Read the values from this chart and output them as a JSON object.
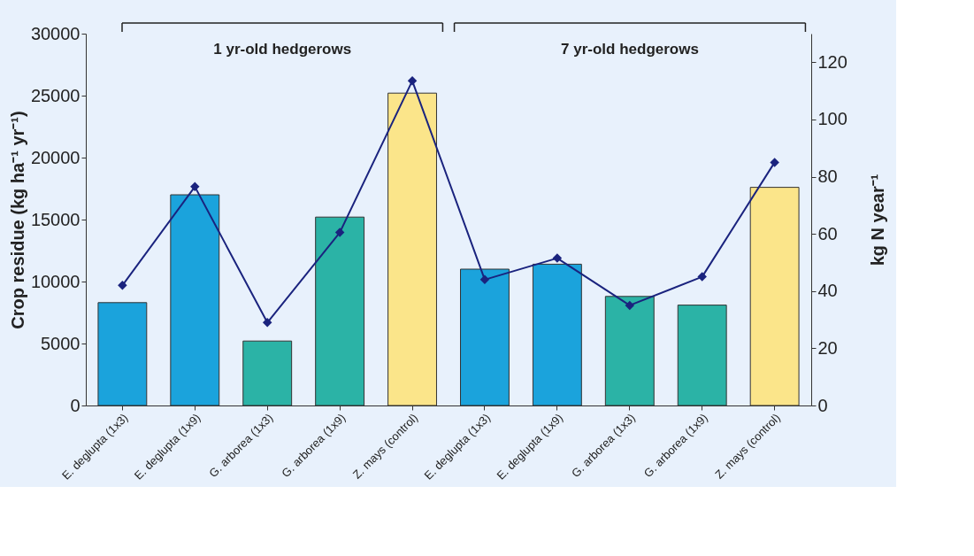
{
  "chart_data": {
    "type": "bar",
    "categories": [
      "E. deglupta (1x3)",
      "E. deglupta (1x9)",
      "G. arborea (1x3)",
      "G. arborea (1x9)",
      "Z. mays (control)",
      "E. deglupta (1x3)",
      "E. deglupta (1x9)",
      "G. arborea (1x3)",
      "G. arborea (1x9)",
      "Z. mays (control)"
    ],
    "series": [
      {
        "colors": [
          "#1ba3dc",
          "#1ba3dc",
          "#2bb3a6",
          "#2bb3a6",
          "#fbe58a",
          "#1ba3dc",
          "#1ba3dc",
          "#2bb3a6",
          "#2bb3a6",
          "#fbe58a"
        ],
        "values": [
          8300,
          17000,
          5200,
          15200,
          25200,
          11000,
          11400,
          8800,
          8100,
          17600
        ]
      },
      {
        "type": "line",
        "axis": "y2",
        "color": "#1a237e",
        "marker": "diamond",
        "values": [
          42,
          76.5,
          29,
          60.5,
          113.5,
          44,
          51.5,
          35,
          45,
          85
        ]
      }
    ],
    "ylabel": "Crop residue (kg ha⁻¹ yr⁻¹)",
    "y2label": "kg N year⁻¹",
    "ylim": [
      0,
      30000
    ],
    "yticks": [
      0,
      5000,
      10000,
      15000,
      20000,
      25000,
      30000
    ],
    "y2lim": [
      0,
      130
    ],
    "y2ticks": [
      0,
      20,
      40,
      60,
      80,
      100,
      120
    ],
    "annotations": [
      "1 yr-old hedgerows",
      "7 yr-old hedgerows"
    ],
    "grid": false
  }
}
